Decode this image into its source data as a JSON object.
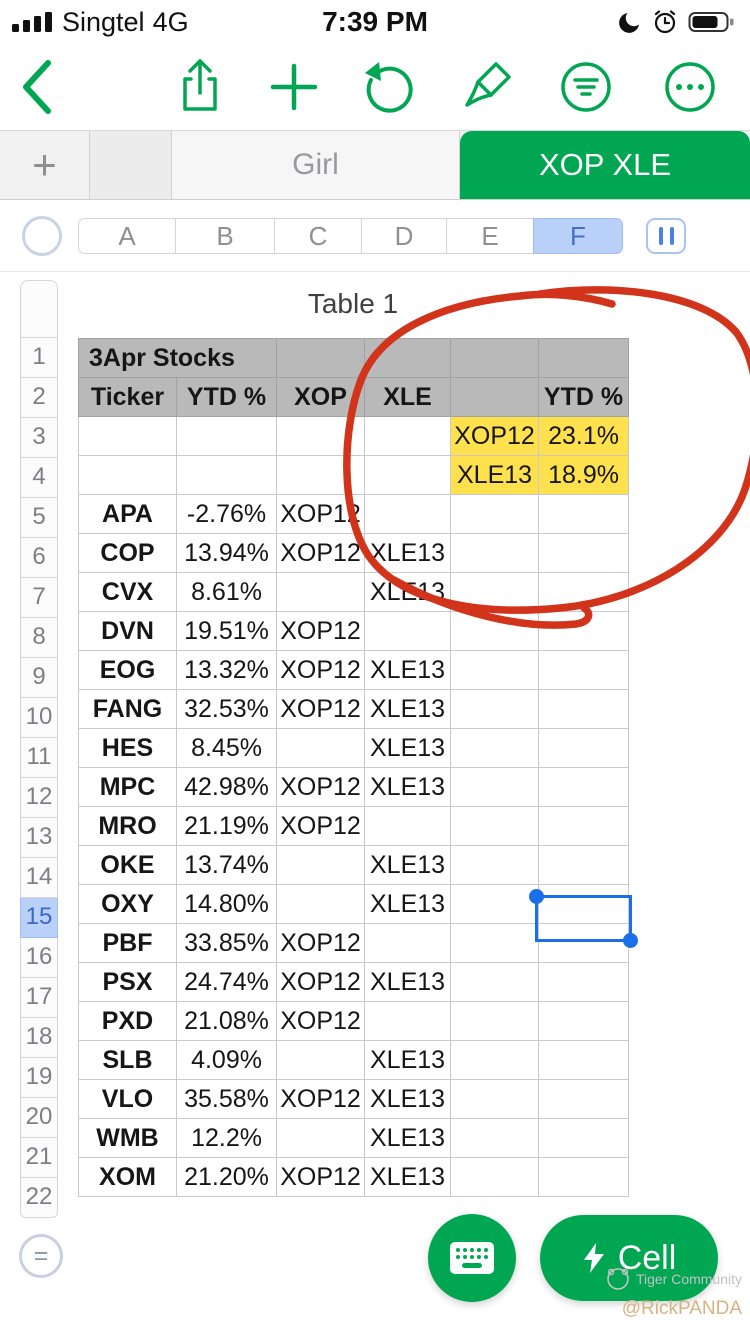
{
  "theme": {
    "accent_green": "#00A651",
    "selection_blue": "#1B6FE8",
    "highlight_yellow": "#FFE14E",
    "annotation_red": "#D2331B",
    "header_gray": "#B9B9B9"
  },
  "status_bar": {
    "carrier": "Singtel",
    "network": "4G",
    "time": "7:39 PM",
    "icons": [
      "signal-bars",
      "moon",
      "alarm",
      "battery"
    ]
  },
  "toolbar": {
    "icons": [
      "back",
      "share",
      "add",
      "undo",
      "format-brush",
      "filter",
      "more"
    ]
  },
  "tab_bar": {
    "new_tab": "+",
    "tabs": [
      {
        "label": "Girl",
        "active": false
      },
      {
        "label": "XOP XLE",
        "active": true
      }
    ]
  },
  "column_header": {
    "columns": [
      "A",
      "B",
      "C",
      "D",
      "E",
      "F"
    ],
    "selected": "F"
  },
  "sheet": {
    "title": "Table 1",
    "row_count": 22,
    "selected_row": 15,
    "selected_column": "F",
    "table_header": "3Apr Stocks",
    "header_row": [
      "Ticker",
      "YTD %",
      "XOP",
      "XLE",
      "",
      "YTD %"
    ],
    "callouts": [
      {
        "label": "XOP12",
        "value": "23.1%"
      },
      {
        "label": "XLE13",
        "value": "18.9%"
      }
    ],
    "rows": [
      {
        "ticker": "APA",
        "ytd": "-2.76%",
        "xop": "XOP12",
        "xle": ""
      },
      {
        "ticker": "COP",
        "ytd": "13.94%",
        "xop": "XOP12",
        "xle": "XLE13"
      },
      {
        "ticker": "CVX",
        "ytd": "8.61%",
        "xop": "",
        "xle": "XLE13"
      },
      {
        "ticker": "DVN",
        "ytd": "19.51%",
        "xop": "XOP12",
        "xle": ""
      },
      {
        "ticker": "EOG",
        "ytd": "13.32%",
        "xop": "XOP12",
        "xle": "XLE13"
      },
      {
        "ticker": "FANG",
        "ytd": "32.53%",
        "xop": "XOP12",
        "xle": "XLE13"
      },
      {
        "ticker": "HES",
        "ytd": "8.45%",
        "xop": "",
        "xle": "XLE13"
      },
      {
        "ticker": "MPC",
        "ytd": "42.98%",
        "xop": "XOP12",
        "xle": "XLE13"
      },
      {
        "ticker": "MRO",
        "ytd": "21.19%",
        "xop": "XOP12",
        "xle": ""
      },
      {
        "ticker": "OKE",
        "ytd": "13.74%",
        "xop": "",
        "xle": "XLE13"
      },
      {
        "ticker": "OXY",
        "ytd": "14.80%",
        "xop": "",
        "xle": "XLE13"
      },
      {
        "ticker": "PBF",
        "ytd": "33.85%",
        "xop": "XOP12",
        "xle": ""
      },
      {
        "ticker": "PSX",
        "ytd": "24.74%",
        "xop": "XOP12",
        "xle": "XLE13"
      },
      {
        "ticker": "PXD",
        "ytd": "21.08%",
        "xop": "XOP12",
        "xle": ""
      },
      {
        "ticker": "SLB",
        "ytd": "4.09%",
        "xop": "",
        "xle": "XLE13"
      },
      {
        "ticker": "VLO",
        "ytd": "35.58%",
        "xop": "XOP12",
        "xle": "XLE13"
      },
      {
        "ticker": "WMB",
        "ytd": "12.2%",
        "xop": "",
        "xle": "XLE13"
      },
      {
        "ticker": "XOM",
        "ytd": "21.20%",
        "xop": "XOP12",
        "xle": "XLE13"
      }
    ]
  },
  "footer": {
    "cell_button": "Cell",
    "equals_button": "=",
    "watermark": "Tiger Community",
    "credit": "@RickPANDA"
  }
}
